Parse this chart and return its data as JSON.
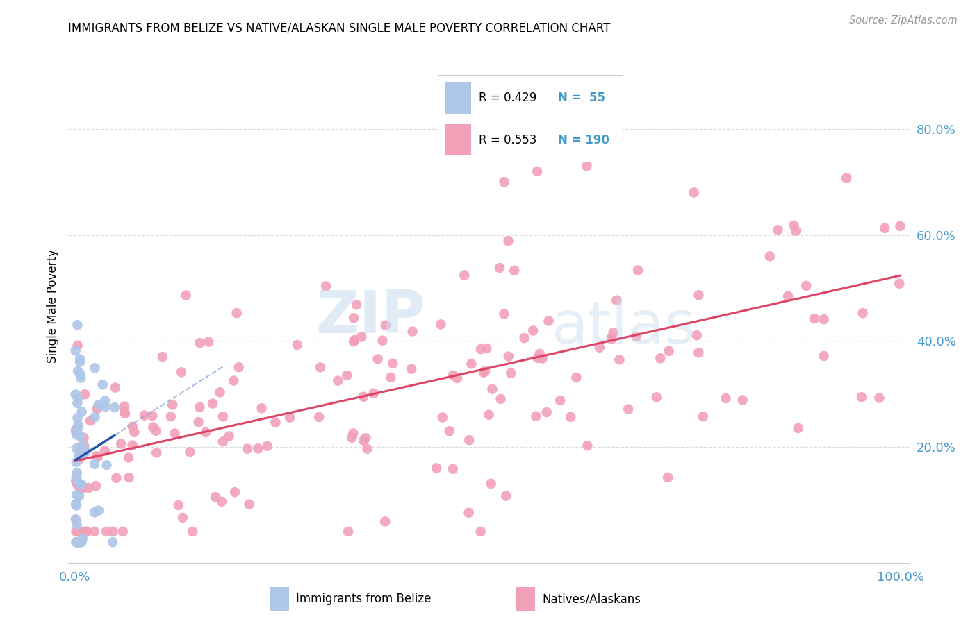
{
  "title": "IMMIGRANTS FROM BELIZE VS NATIVE/ALASKAN SINGLE MALE POVERTY CORRELATION CHART",
  "source": "Source: ZipAtlas.com",
  "ylabel": "Single Male Poverty",
  "blue_color": "#aec6e8",
  "blue_line_color": "#2255aa",
  "blue_line_dash_color": "#88aadd",
  "pink_color": "#f2a0b8",
  "pink_line_color": "#dd4466",
  "legend_r1": "R = 0.429",
  "legend_n1": "N =  55",
  "legend_r2": "R = 0.553",
  "legend_n2": "N = 190",
  "tick_color": "#4499cc",
  "grid_color": "#dddddd",
  "source_color": "#999999"
}
